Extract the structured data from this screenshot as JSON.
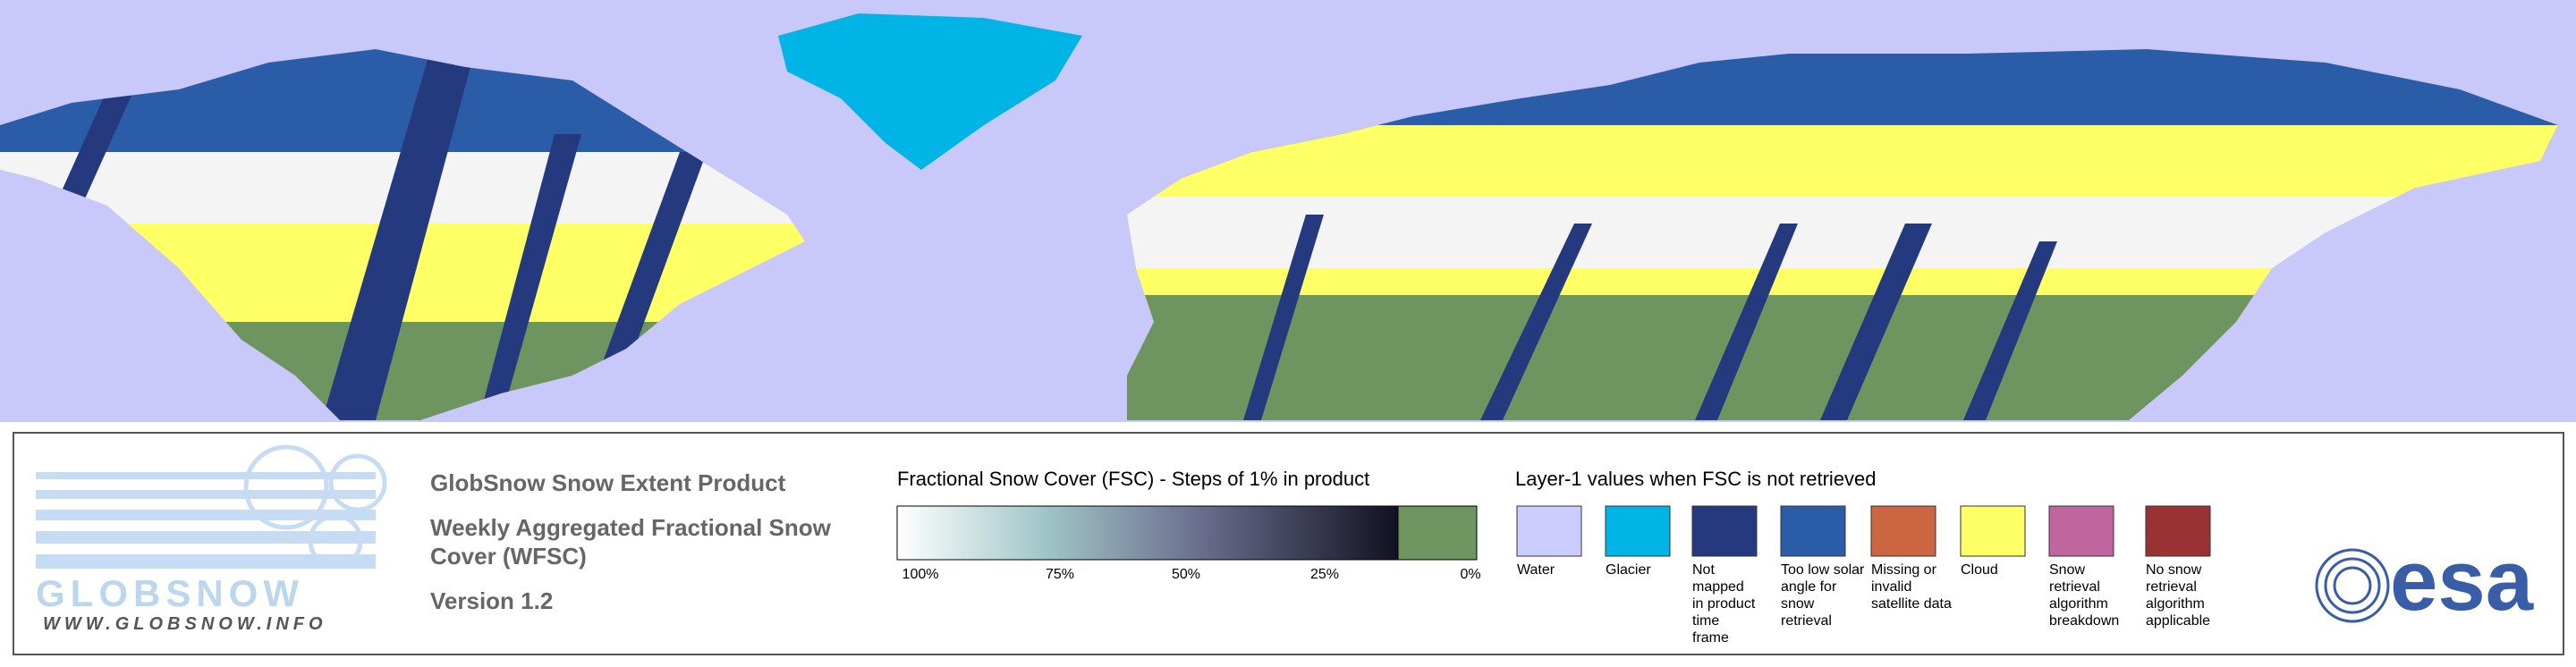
{
  "logo": {
    "name": "GLOBSNOW",
    "url": "WWW.GLOBSNOW.INFO"
  },
  "header": {
    "title": "GlobSnow Snow Extent Product",
    "subtitle": "Weekly Aggregated Fractional Snow Cover (WFSC)",
    "version": "Version 1.2"
  },
  "colorbar": {
    "title": "Fractional Snow Cover (FSC) - Steps of 1% in product",
    "ticks": [
      "100%",
      "75%",
      "50%",
      "25%",
      "0%"
    ]
  },
  "legend": {
    "title": "Layer-1 values when FSC is not retrieved",
    "items": [
      {
        "label": "Water",
        "color": "#ccccff"
      },
      {
        "label": "Glacier",
        "color": "#00b4e6"
      },
      {
        "label": "Not mapped in product time frame",
        "color": "#253a7e"
      },
      {
        "label": "Too low solar angle for snow retrieval",
        "color": "#2b5ca8"
      },
      {
        "label": "Missing or invalid satellite data",
        "color": "#cc6640"
      },
      {
        "label": "Cloud",
        "color": "#ffff66"
      },
      {
        "label": "Snow retrieval algorithm breakdown",
        "color": "#c0659e"
      },
      {
        "label": "No snow retrieval algorithm applicable",
        "color": "#993333"
      }
    ]
  },
  "esa": "esa"
}
